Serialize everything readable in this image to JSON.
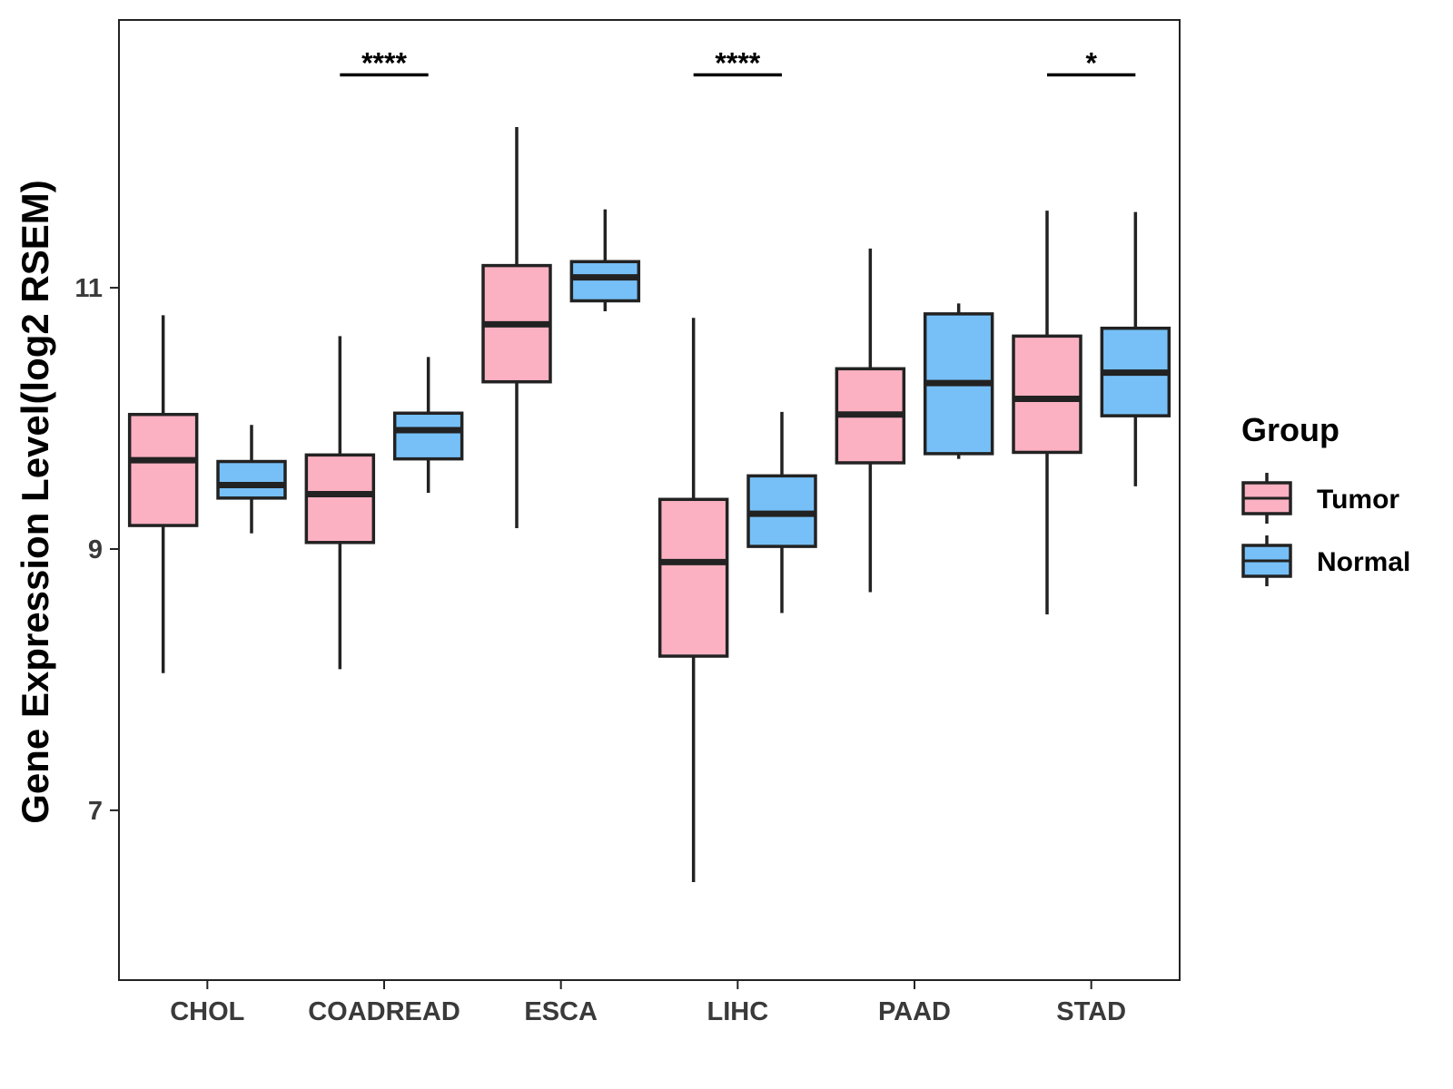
{
  "chart_data": {
    "type": "boxplot",
    "title": "",
    "xlabel": "",
    "ylabel": "Gene Expression Level(log2 RSEM)",
    "ylim": [
      5.7,
      13.05
    ],
    "yticks": [
      "7",
      "9",
      "11"
    ],
    "ytick_values": [
      7,
      9,
      11
    ],
    "grid": false,
    "legend": {
      "title": "Group",
      "position": "right"
    },
    "categories": [
      "CHOL",
      "COADREAD",
      "ESCA",
      "LIHC",
      "PAAD",
      "STAD"
    ],
    "series": [
      {
        "name": "Tumor",
        "color": "#FBB1C2",
        "boxes": [
          {
            "whisker_low": 8.05,
            "q1": 9.18,
            "median": 9.68,
            "q3": 10.03,
            "whisker_high": 10.79
          },
          {
            "whisker_low": 8.08,
            "q1": 9.05,
            "median": 9.42,
            "q3": 9.72,
            "whisker_high": 10.63
          },
          {
            "whisker_low": 9.16,
            "q1": 10.28,
            "median": 10.72,
            "q3": 11.17,
            "whisker_high": 12.23
          },
          {
            "whisker_low": 6.45,
            "q1": 8.18,
            "median": 8.9,
            "q3": 9.38,
            "whisker_high": 10.77
          },
          {
            "whisker_low": 8.67,
            "q1": 9.66,
            "median": 10.03,
            "q3": 10.38,
            "whisker_high": 11.3
          },
          {
            "whisker_low": 8.5,
            "q1": 9.74,
            "median": 10.15,
            "q3": 10.63,
            "whisker_high": 11.59
          }
        ]
      },
      {
        "name": "Normal",
        "color": "#77C0F7",
        "boxes": [
          {
            "whisker_low": 9.12,
            "q1": 9.39,
            "median": 9.49,
            "q3": 9.67,
            "whisker_high": 9.95
          },
          {
            "whisker_low": 9.43,
            "q1": 9.69,
            "median": 9.91,
            "q3": 10.04,
            "whisker_high": 10.47
          },
          {
            "whisker_low": 10.82,
            "q1": 10.9,
            "median": 11.08,
            "q3": 11.2,
            "whisker_high": 11.6
          },
          {
            "whisker_low": 8.51,
            "q1": 9.02,
            "median": 9.27,
            "q3": 9.56,
            "whisker_high": 10.05
          },
          {
            "whisker_low": 9.69,
            "q1": 9.73,
            "median": 10.27,
            "q3": 10.8,
            "whisker_high": 10.88
          },
          {
            "whisker_low": 9.48,
            "q1": 10.02,
            "median": 10.35,
            "q3": 10.69,
            "whisker_high": 11.58
          }
        ]
      }
    ],
    "significance": [
      {
        "category": "COADREAD",
        "label": "****",
        "y": 12.63
      },
      {
        "category": "LIHC",
        "label": "****",
        "y": 12.63
      },
      {
        "category": "STAD",
        "label": "*",
        "y": 12.63
      }
    ]
  }
}
